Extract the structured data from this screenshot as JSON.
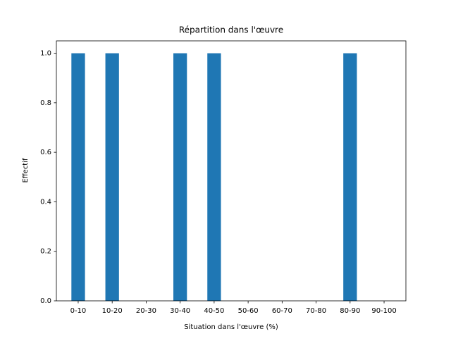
{
  "chart_data": {
    "type": "bar",
    "title": "Répartition dans l'œuvre",
    "x_label": "Situation dans l'œuvre (%)",
    "y_label": "Effectif",
    "categories": [
      "0-10",
      "10-20",
      "20-30",
      "30-40",
      "40-50",
      "50-60",
      "60-70",
      "70-80",
      "80-90",
      "90-100"
    ],
    "values": [
      1,
      1,
      0,
      1,
      1,
      0,
      0,
      0,
      1,
      0
    ],
    "color": "#1f77b4",
    "ylim": [
      0,
      1.05
    ],
    "yticks": [
      {
        "value": 0,
        "label": "0.0"
      },
      {
        "value": 0.2,
        "label": "0.2"
      },
      {
        "value": 0.4,
        "label": "0.4"
      },
      {
        "value": 0.6,
        "label": "0.6"
      },
      {
        "value": 0.8,
        "label": "0.8"
      },
      {
        "value": 1,
        "label": "1.0"
      }
    ],
    "grid": false
  }
}
